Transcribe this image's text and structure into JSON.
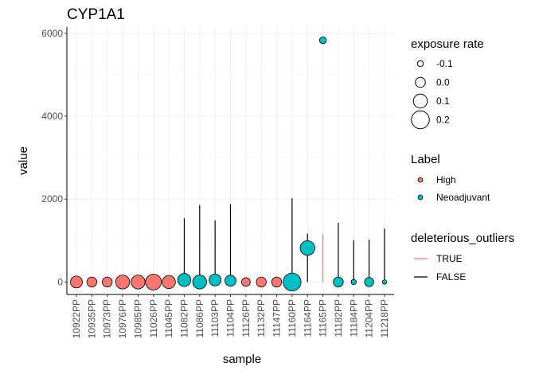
{
  "chart_data": {
    "type": "scatter",
    "title": "CYP1A1",
    "xlabel": "sample",
    "ylabel": "value",
    "ylim": [
      -300,
      6150
    ],
    "yticks": [
      0,
      2000,
      4000,
      6000
    ],
    "categories": [
      "10922PP",
      "10935PP",
      "10973PP",
      "10976PP",
      "10985PP",
      "11026PP",
      "11045PP",
      "11082PP",
      "11086PP",
      "11103PP",
      "11104PP",
      "11126PP",
      "11132PP",
      "11147PP",
      "11160PP",
      "11164PP",
      "11165PP",
      "11182PP",
      "11184PP",
      "11204PP",
      "11218PP"
    ],
    "points": [
      {
        "sample": "10922PP",
        "value": 0,
        "label": "High",
        "exposure_rate": 0.05
      },
      {
        "sample": "10935PP",
        "value": 0,
        "label": "High",
        "exposure_rate": 0.0
      },
      {
        "sample": "10973PP",
        "value": 0,
        "label": "High",
        "exposure_rate": 0.0
      },
      {
        "sample": "10976PP",
        "value": 0,
        "label": "High",
        "exposure_rate": 0.1
      },
      {
        "sample": "10985PP",
        "value": 0,
        "label": "High",
        "exposure_rate": 0.1
      },
      {
        "sample": "11026PP",
        "value": 0,
        "label": "High",
        "exposure_rate": 0.15
      },
      {
        "sample": "11045PP",
        "value": 0,
        "label": "High",
        "exposure_rate": 0.08
      },
      {
        "sample": "11082PP",
        "value": 50,
        "label": "Neoadjuvant",
        "exposure_rate": 0.08
      },
      {
        "sample": "11086PP",
        "value": 0,
        "label": "Neoadjuvant",
        "exposure_rate": 0.1
      },
      {
        "sample": "11103PP",
        "value": 50,
        "label": "Neoadjuvant",
        "exposure_rate": 0.05
      },
      {
        "sample": "11104PP",
        "value": 30,
        "label": "Neoadjuvant",
        "exposure_rate": 0.03
      },
      {
        "sample": "11126PP",
        "value": 0,
        "label": "High",
        "exposure_rate": -0.03
      },
      {
        "sample": "11132PP",
        "value": 0,
        "label": "High",
        "exposure_rate": 0.0
      },
      {
        "sample": "11147PP",
        "value": 0,
        "label": "High",
        "exposure_rate": 0.0
      },
      {
        "sample": "11160PP",
        "value": 0,
        "label": "Neoadjuvant",
        "exposure_rate": 0.2
      },
      {
        "sample": "11164PP",
        "value": 820,
        "label": "Neoadjuvant",
        "exposure_rate": 0.12
      },
      {
        "sample": "11165PP",
        "value": 5830,
        "label": "Neoadjuvant",
        "exposure_rate": -0.08
      },
      {
        "sample": "11182PP",
        "value": 0,
        "label": "Neoadjuvant",
        "exposure_rate": 0.0
      },
      {
        "sample": "11184PP",
        "value": 0,
        "label": "Neoadjuvant",
        "exposure_rate": -0.12
      },
      {
        "sample": "11204PP",
        "value": 0,
        "label": "Neoadjuvant",
        "exposure_rate": -0.02
      },
      {
        "sample": "11218PP",
        "value": 0,
        "label": "Neoadjuvant",
        "exposure_rate": -0.14
      }
    ],
    "segments": [
      {
        "sample": "11082PP",
        "from": 0,
        "to": 1540,
        "deleterious_outliers": "FALSE"
      },
      {
        "sample": "11086PP",
        "from": 0,
        "to": 1860,
        "deleterious_outliers": "FALSE"
      },
      {
        "sample": "11103PP",
        "from": 0,
        "to": 1490,
        "deleterious_outliers": "FALSE"
      },
      {
        "sample": "11104PP",
        "from": 0,
        "to": 1880,
        "deleterious_outliers": "FALSE"
      },
      {
        "sample": "11160PP",
        "from": 0,
        "to": 2020,
        "deleterious_outliers": "FALSE"
      },
      {
        "sample": "11164PP",
        "from": 0,
        "to": 1170,
        "deleterious_outliers": "FALSE"
      },
      {
        "sample": "11165PP",
        "from": 0,
        "to": 1160,
        "deleterious_outliers": "TRUE"
      },
      {
        "sample": "11182PP",
        "from": 0,
        "to": 1430,
        "deleterious_outliers": "FALSE"
      },
      {
        "sample": "11184PP",
        "from": 0,
        "to": 1010,
        "deleterious_outliers": "FALSE"
      },
      {
        "sample": "11204PP",
        "from": 0,
        "to": 1020,
        "deleterious_outliers": "FALSE"
      },
      {
        "sample": "11218PP",
        "from": 0,
        "to": 1290,
        "deleterious_outliers": "FALSE"
      }
    ],
    "legend": {
      "size": {
        "title": "exposure rate",
        "entries": [
          {
            "label": "-0.1",
            "value": -0.1
          },
          {
            "label": "0.0",
            "value": 0.0
          },
          {
            "label": "0.1",
            "value": 0.1
          },
          {
            "label": "0.2",
            "value": 0.2
          }
        ]
      },
      "fill": {
        "title": "Label",
        "entries": [
          {
            "label": "High",
            "color": "#F8766D"
          },
          {
            "label": "Neoadjuvant",
            "color": "#00BFC4"
          }
        ]
      },
      "line": {
        "title": "deleterious_outliers",
        "entries": [
          {
            "label": "TRUE",
            "color": "#F8766D"
          },
          {
            "label": "FALSE",
            "color": "#000000"
          }
        ]
      }
    },
    "grid": true,
    "legend_position": "right"
  }
}
